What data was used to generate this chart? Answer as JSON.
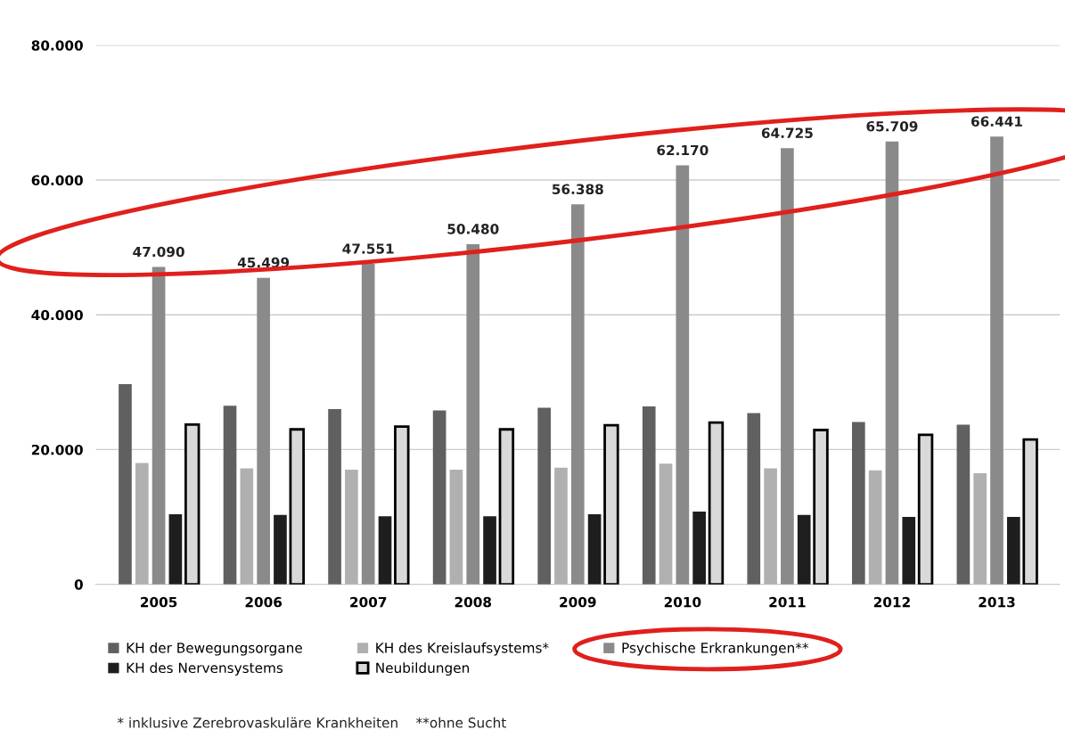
{
  "chart_data": {
    "type": "bar",
    "categories": [
      "2005",
      "2006",
      "2007",
      "2008",
      "2009",
      "2010",
      "2011",
      "2012",
      "2013"
    ],
    "series": [
      {
        "name": "KH der Bewegungsorgane",
        "color": "#606060",
        "values": [
          29700,
          26500,
          26000,
          25800,
          26200,
          26400,
          25400,
          24100,
          23700
        ]
      },
      {
        "name": "KH des Kreislaufsystems*",
        "color": "#b0b0b0",
        "values": [
          18000,
          17200,
          17000,
          17000,
          17300,
          17900,
          17200,
          16900,
          16500
        ]
      },
      {
        "name": "Psychische Erkrankungen**",
        "color": "#8a8a8a",
        "values": [
          47090,
          45499,
          47551,
          50480,
          56388,
          62170,
          64725,
          65709,
          66441
        ],
        "value_labels": [
          "47.090",
          "45.499",
          "47.551",
          "50.480",
          "56.388",
          "62.170",
          "64.725",
          "65.709",
          "66.441"
        ]
      },
      {
        "name": "KH des Nervensystems",
        "color": "#1e1e1e",
        "values": [
          10400,
          10300,
          10100,
          10100,
          10400,
          10800,
          10300,
          10000,
          10000
        ]
      },
      {
        "name": "Neubildungen",
        "color": "#d9d9d9",
        "values": [
          23700,
          23000,
          23400,
          23000,
          23600,
          24000,
          22900,
          22200,
          21500
        ]
      }
    ],
    "ylim": [
      0,
      80000
    ],
    "yticks": [
      {
        "value": 0,
        "label": "0"
      },
      {
        "value": 20000,
        "label": "20.000"
      },
      {
        "value": 40000,
        "label": "40.000"
      },
      {
        "value": 60000,
        "label": "60.000"
      },
      {
        "value": 80000,
        "label": "80.000"
      }
    ],
    "grid": "y",
    "legend": "bottom",
    "annotations": [
      "* inklusive Zerebrovaskuläre Krankheiten    **ohne Sucht"
    ]
  }
}
